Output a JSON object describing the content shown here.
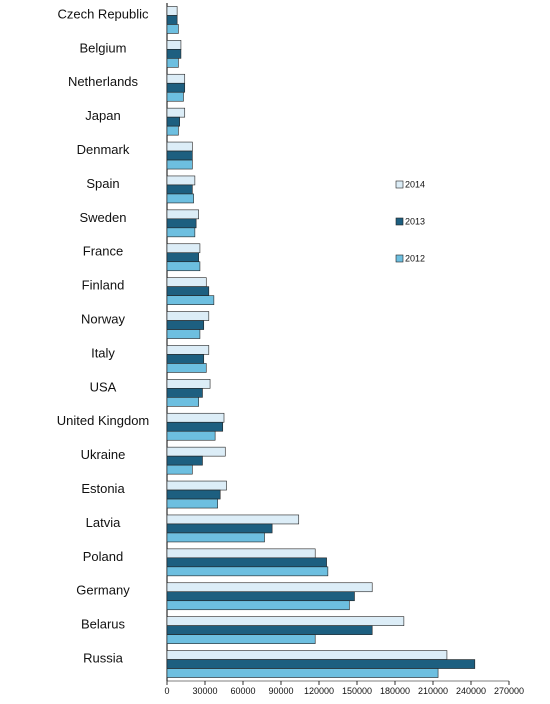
{
  "chart_data": {
    "type": "bar",
    "orientation": "horizontal",
    "title": "",
    "xlabel": "",
    "ylabel": "",
    "xlim": [
      0,
      270000
    ],
    "ticks": [
      0,
      30000,
      60000,
      90000,
      120000,
      150000,
      180000,
      210000,
      240000,
      270000
    ],
    "tick_labels": [
      "0",
      "30000",
      "60000",
      "90000",
      "120000",
      "150000",
      "180000",
      "210000",
      "240000",
      "270000"
    ],
    "grid": false,
    "legend_position": "right",
    "categories": [
      "Czech Republic",
      "Belgium",
      "Netherlands",
      "Japan",
      "Denmark",
      "Spain",
      "Sweden",
      "France",
      "Finland",
      "Norway",
      "Italy",
      "USA",
      "United Kingdom",
      "Ukraine",
      "Estonia",
      "Latvia",
      "Poland",
      "Germany",
      "Belarus",
      "Russia"
    ],
    "series": [
      {
        "name": "2014",
        "color": "#dcedf7",
        "values": [
          8000,
          11000,
          14000,
          14000,
          20000,
          22000,
          25000,
          26000,
          31000,
          33000,
          33000,
          34000,
          45000,
          46000,
          47000,
          104000,
          117000,
          162000,
          187000,
          221000
        ]
      },
      {
        "name": "2013",
        "color": "#1d5f80",
        "values": [
          8000,
          11000,
          14000,
          10000,
          20000,
          20000,
          23000,
          25000,
          33000,
          29000,
          29000,
          28000,
          44000,
          28000,
          42000,
          83000,
          126000,
          148000,
          162000,
          243000
        ]
      },
      {
        "name": "2012",
        "color": "#6dbfe0",
        "values": [
          9000,
          9000,
          13000,
          9000,
          20000,
          21000,
          22000,
          26000,
          37000,
          26000,
          31000,
          25000,
          38000,
          20000,
          40000,
          77000,
          127000,
          144000,
          117000,
          214000
        ]
      }
    ]
  }
}
